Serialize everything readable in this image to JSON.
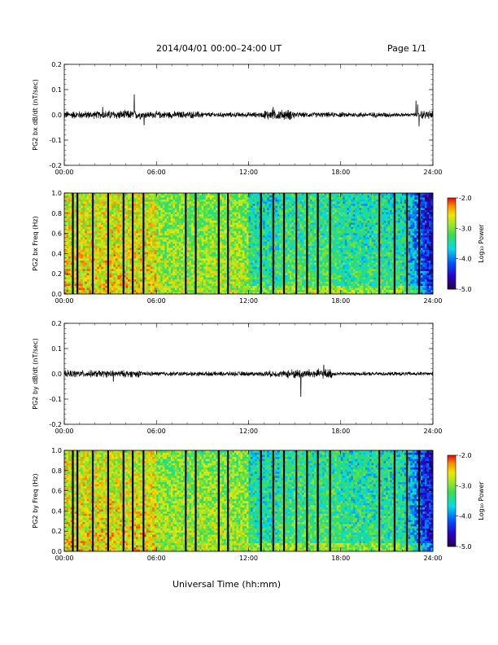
{
  "header": {
    "title": "2014/04/01  00:00–24:00 UT",
    "page": "Page 1/1"
  },
  "xaxis_title": "Universal Time (hh:mm)",
  "colorbar": {
    "label": "Log₁₀ Power",
    "ticks": [
      "-2.0",
      "-3.0",
      "-4.0",
      "-5.0"
    ]
  },
  "chart_data": [
    {
      "type": "line",
      "ylabel": "PG2 bx dB/dt (nT/sec)",
      "xlim": [
        "00:00",
        "24:00"
      ],
      "x_ticks": [
        "00:00",
        "06:00",
        "12:00",
        "18:00",
        "24:00"
      ],
      "ylim": [
        -0.2,
        0.2
      ],
      "y_ticks": [
        "0.2",
        "0.1",
        "0.0",
        "-0.1",
        "-0.2"
      ],
      "baseline": 0.0,
      "noise_amplitude": [
        {
          "from": 0,
          "to": 2.5,
          "amp": 0.012
        },
        {
          "from": 2.5,
          "to": 5,
          "amp": 0.014
        },
        {
          "from": 5,
          "to": 9,
          "amp": 0.011
        },
        {
          "from": 9,
          "to": 13,
          "amp": 0.008
        },
        {
          "from": 13,
          "to": 15,
          "amp": 0.016
        },
        {
          "from": 15,
          "to": 21.5,
          "amp": 0.008
        },
        {
          "from": 21.5,
          "to": 23.2,
          "amp": 0.006
        },
        {
          "from": 23.2,
          "to": 24,
          "amp": 0.014
        }
      ],
      "spikes": [
        {
          "t": 4.55,
          "v": 0.08
        },
        {
          "t": 5.2,
          "v": -0.04
        },
        {
          "t": 2.5,
          "v": 0.03
        },
        {
          "t": 13.6,
          "v": 0.03
        },
        {
          "t": 22.9,
          "v": 0.055
        },
        {
          "t": 23.1,
          "v": -0.045
        },
        {
          "t": 23.0,
          "v": 0.04
        }
      ]
    },
    {
      "type": "heatmap",
      "ylabel": "PG2 bx Freq (Hz)",
      "xlim": [
        "00:00",
        "24:00"
      ],
      "x_ticks": [
        "00:00",
        "06:00",
        "12:00",
        "18:00",
        "24:00"
      ],
      "ylim": [
        0.0,
        1.0
      ],
      "y_ticks": [
        "1.0",
        "0.8",
        "0.6",
        "0.4",
        "0.2",
        "0.0"
      ],
      "zlim": [
        -5.0,
        -2.0
      ],
      "gaps_hours": [
        0.55,
        0.85,
        1.85,
        2.85,
        3.85,
        4.45,
        5.15,
        7.9,
        8.55,
        10.05,
        10.65,
        12.8,
        13.6,
        14.3,
        15.1,
        15.8,
        16.5,
        17.3,
        20.5,
        21.5,
        22.3,
        23.1
      ]
    },
    {
      "type": "line",
      "ylabel": "PG2 by dB/dt (nT/sec)",
      "xlim": [
        "00:00",
        "24:00"
      ],
      "x_ticks": [
        "00:00",
        "06:00",
        "12:00",
        "18:00",
        "24:00"
      ],
      "ylim": [
        -0.2,
        0.2
      ],
      "y_ticks": [
        "0.2",
        "0.1",
        "0.0",
        "-0.1",
        "-0.2"
      ],
      "baseline": 0.0,
      "noise_amplitude": [
        {
          "from": 0,
          "to": 5,
          "amp": 0.011
        },
        {
          "from": 5,
          "to": 13,
          "amp": 0.007
        },
        {
          "from": 13,
          "to": 14.5,
          "amp": 0.01
        },
        {
          "from": 14.5,
          "to": 17.5,
          "amp": 0.015
        },
        {
          "from": 17.5,
          "to": 24,
          "amp": 0.006
        }
      ],
      "spikes": [
        {
          "t": 15.4,
          "v": -0.09
        },
        {
          "t": 16.9,
          "v": 0.035
        },
        {
          "t": 3.2,
          "v": -0.03
        }
      ]
    },
    {
      "type": "heatmap",
      "ylabel": "PG2 by Freq (Hz)",
      "xlim": [
        "00:00",
        "24:00"
      ],
      "x_ticks": [
        "00:00",
        "06:00",
        "12:00",
        "18:00",
        "24:00"
      ],
      "ylim": [
        0.0,
        1.0
      ],
      "y_ticks": [
        "1.0",
        "0.8",
        "0.6",
        "0.4",
        "0.2",
        "0.0"
      ],
      "zlim": [
        -5.0,
        -2.0
      ],
      "gaps_hours": [
        0.55,
        0.85,
        1.85,
        2.85,
        3.85,
        4.45,
        5.15,
        7.9,
        8.55,
        10.05,
        10.65,
        12.8,
        13.6,
        14.3,
        15.1,
        15.8,
        16.5,
        17.3,
        20.5,
        21.5,
        22.3,
        23.1
      ]
    }
  ]
}
